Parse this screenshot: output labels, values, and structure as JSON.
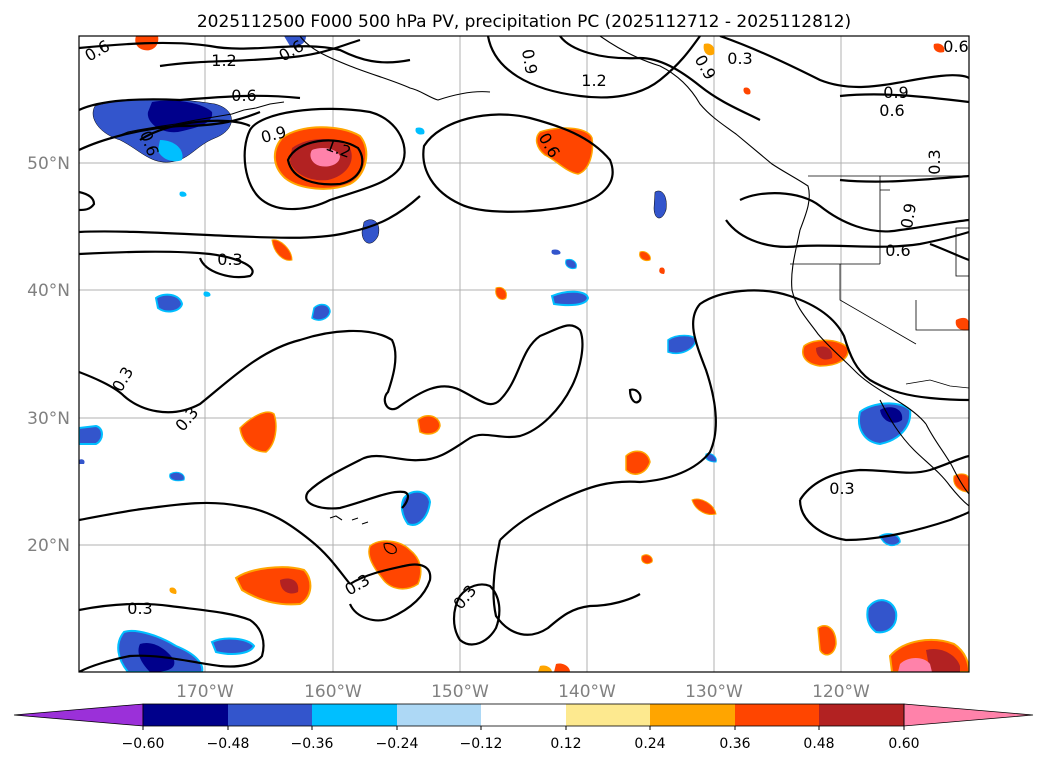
{
  "title": "2025112500 F000 500 hPa PV, precipitation PC (2025112712 - 2025112812)",
  "lat_labels": [
    "50°N",
    "40°N",
    "30°N",
    "20°N"
  ],
  "lon_labels": [
    "170°W",
    "160°W",
    "150°W",
    "140°W",
    "130°W",
    "120°W"
  ],
  "contour_labels": [
    "0.6",
    "1.2",
    "0.6",
    "0.9",
    "0.6",
    "1.2",
    "0.3",
    "0.6",
    "0.9",
    "1.2",
    "0.3",
    "0.9",
    "0.6",
    "0.3",
    "0.6",
    "0.9",
    "0.6",
    "0.3",
    "0.3",
    "0.3",
    "0.3",
    "0.3",
    "0.3",
    "0.9",
    "0.6"
  ],
  "colorbar": {
    "ticks": [
      "−0.60",
      "−0.48",
      "−0.36",
      "−0.24",
      "−0.12",
      "0.12",
      "0.24",
      "0.36",
      "0.48",
      "0.60"
    ],
    "colors": {
      "under": "#9b30d9",
      "c1": "#00008b",
      "c2": "#3355cc",
      "c3": "#00bfff",
      "c4": "#add8f5",
      "c5": "#ffffff",
      "c6": "#fde98f",
      "c7": "#ffa500",
      "c8": "#ff4500",
      "c9": "#b22222",
      "over": "#ff82aa"
    }
  }
}
